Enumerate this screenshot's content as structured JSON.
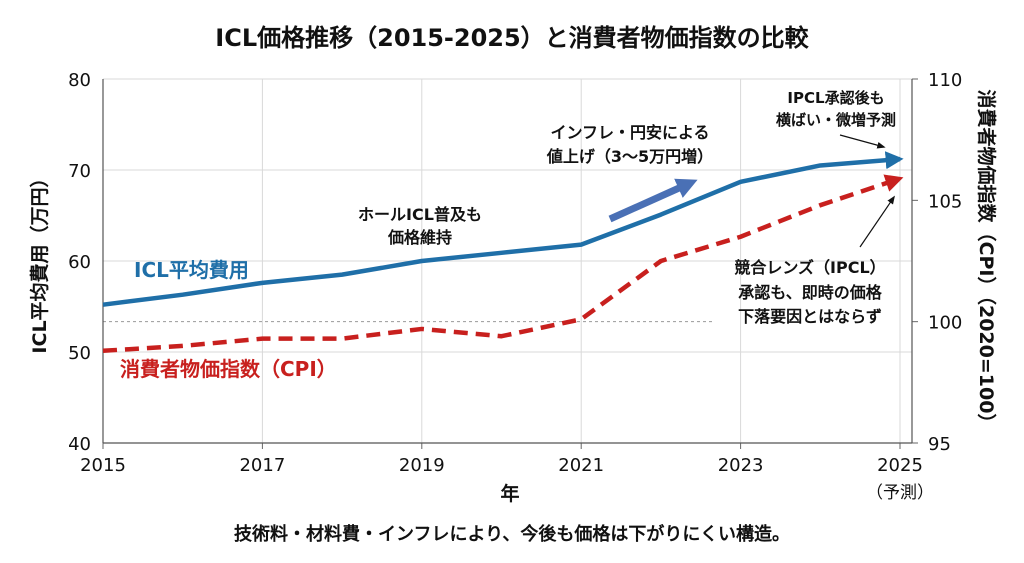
{
  "chart_data": {
    "type": "line",
    "title": "ICL価格推移（2015-2025）と消費者物価指数の比較",
    "xlabel": "年",
    "ylabel": "ICL平均費用（万円）",
    "y2label": "消費者物価指数（CPI）（2020=100）",
    "footer": "技術料・材料費・インフレにより、今後も価格は下がりにくい構造。",
    "x": [
      2015,
      2016,
      2017,
      2018,
      2019,
      2020,
      2021,
      2022,
      2023,
      2024,
      2025
    ],
    "x_ticks": [
      "2015",
      "2017",
      "2019",
      "2021",
      "2023",
      "2025"
    ],
    "x_tick_note": "（予測）",
    "xlim": [
      2015,
      2025
    ],
    "ylim": [
      40,
      80
    ],
    "y_ticks": [
      "40",
      "50",
      "60",
      "70",
      "80"
    ],
    "y2lim": [
      95,
      110
    ],
    "y2_ticks": [
      "95",
      "100",
      "105",
      "110"
    ],
    "grid": true,
    "series": [
      {
        "name": "ICL平均費用",
        "axis": "left",
        "color": "#1f6fa8",
        "style": "solid",
        "values": [
          55.2,
          56.3,
          57.6,
          58.5,
          60.0,
          60.9,
          61.8,
          65.1,
          68.7,
          70.5,
          71.2
        ]
      },
      {
        "name": "消費者物価指数（CPI）",
        "axis": "right",
        "color": "#c8201e",
        "style": "dashed",
        "values": [
          98.8,
          99.0,
          99.3,
          99.3,
          99.7,
          99.4,
          100.1,
          102.5,
          103.5,
          104.8,
          105.9
        ]
      }
    ],
    "reference_line": {
      "axis": "right",
      "value": 100
    },
    "annotations": [
      {
        "lines": [
          "ホールICL普及も",
          "価格維持"
        ]
      },
      {
        "lines": [
          "インフレ・円安による",
          "値上げ（3〜5万円増）"
        ]
      },
      {
        "lines": [
          "IPCL承認後も",
          "横ばい・微増予測"
        ]
      },
      {
        "lines": [
          "競合レンズ（IPCL）",
          "承認も、即時の価格",
          "下落要因とはならず"
        ]
      }
    ]
  }
}
